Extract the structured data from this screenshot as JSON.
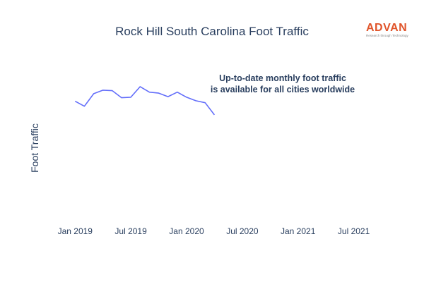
{
  "chart_data": {
    "type": "line",
    "title": "Rock Hill South Carolina Foot Traffic",
    "ylabel": "Foot Traffic",
    "xlabel": "",
    "x": [
      "2019-01",
      "2019-02",
      "2019-03",
      "2019-04",
      "2019-05",
      "2019-06",
      "2019-07",
      "2019-08",
      "2019-09",
      "2019-10",
      "2019-11",
      "2019-12",
      "2020-01",
      "2020-02",
      "2020-03",
      "2020-04"
    ],
    "series": [
      {
        "values": [
          0.83,
          0.73,
          0.98,
          1.05,
          1.04,
          0.9,
          0.91,
          1.12,
          1.01,
          0.99,
          0.92,
          1.01,
          0.91,
          0.84,
          0.8,
          0.56
        ]
      }
    ],
    "x_ticks": [
      "Jan 2019",
      "Jul 2019",
      "Jan 2020",
      "Jul 2020",
      "Jan 2021",
      "Jul 2021"
    ],
    "x_range": [
      "2018-11",
      "2021-10"
    ],
    "y_range": [
      -1.5,
      2.0
    ],
    "y_tick_labels_visible": false,
    "grid": false,
    "line_color": "#636efa"
  },
  "annotation": {
    "line1": "Up-to-date monthly foot traffic",
    "line2": "is available for all cities worldwide"
  },
  "logo": {
    "word": "ADVAN",
    "tagline": "Research through Technology",
    "color": "#e0542a"
  }
}
